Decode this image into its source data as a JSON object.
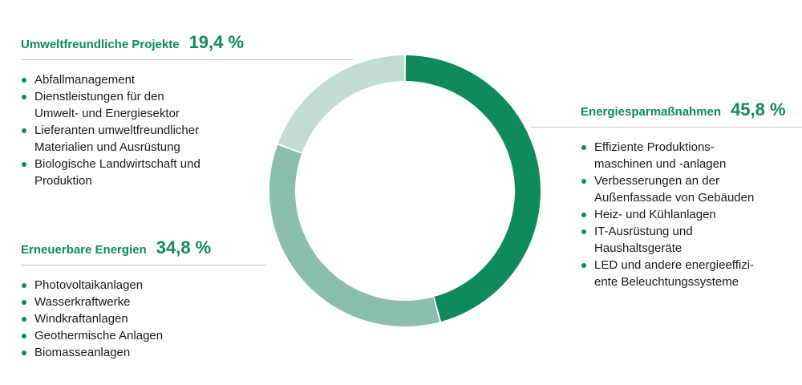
{
  "chart_data": {
    "type": "pie",
    "variant": "donut",
    "title": "",
    "slices": [
      {
        "label": "Energiesparmaßnahmen",
        "value": 45.8,
        "value_text": "45,8 %",
        "color": "#0f8a5c",
        "items": [
          "Effiziente Produktions-\nmaschinen und -anlagen",
          "Verbesserungen an der\nAußenfassade von Gebäuden",
          "Heiz- und Kühlanlagen",
          "IT-Ausrüstung und\nHaushaltsgeräte",
          "LED und andere energieeffizi-\nente Beleuchtungssysteme"
        ]
      },
      {
        "label": "Erneuerbare Energien",
        "value": 34.8,
        "value_text": "34,8 %",
        "color": "#8bbeaf",
        "items": [
          "Photovoltaikanlagen",
          "Wasserkraftwerke",
          "Windkraftanlagen",
          "Geothermische Anlagen",
          "Biomasseanlagen"
        ]
      },
      {
        "label": "Umweltfreundliche Projekte",
        "value": 19.4,
        "value_text": "19,4 %",
        "color": "#c2dcd2",
        "items": [
          "Abfallmanagement",
          "Dienstleistungen für den\nUmwelt- und Energiesektor",
          "Lieferanten umweltfreundlicher\nMaterialien und Ausrüstung",
          "Biologische Landwirtschaft und\nProduktion"
        ]
      }
    ]
  }
}
